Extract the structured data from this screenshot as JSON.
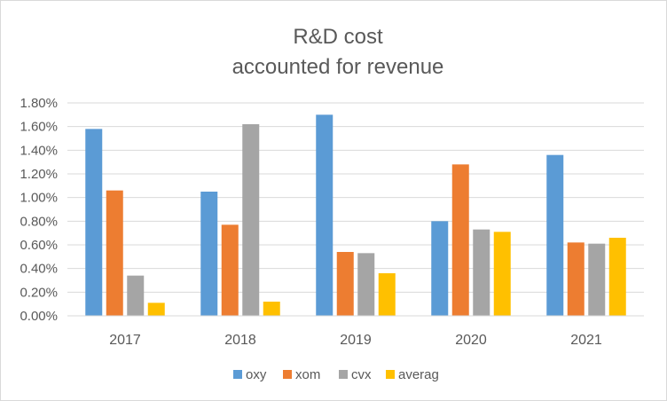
{
  "chart_data": {
    "type": "bar",
    "title_lines": [
      "R&D cost",
      "accounted for revenue"
    ],
    "categories": [
      "2017",
      "2018",
      "2019",
      "2020",
      "2021"
    ],
    "series": [
      {
        "name": "oxy",
        "color": "#5b9bd5",
        "values": [
          1.58,
          1.05,
          1.7,
          0.8,
          1.36
        ]
      },
      {
        "name": "xom",
        "color": "#ed7d31",
        "values": [
          1.06,
          0.77,
          0.54,
          1.28,
          0.62
        ]
      },
      {
        "name": "cvx",
        "color": "#a5a5a5",
        "values": [
          0.34,
          1.62,
          0.53,
          0.73,
          0.61
        ]
      },
      {
        "name": "averag",
        "color": "#ffc000",
        "values": [
          0.11,
          0.12,
          0.36,
          0.71,
          0.66
        ]
      }
    ],
    "ylim": [
      0,
      1.8
    ],
    "yticks": [
      "0.00%",
      "0.20%",
      "0.40%",
      "0.60%",
      "0.80%",
      "1.00%",
      "1.20%",
      "1.40%",
      "1.60%",
      "1.80%"
    ],
    "ytick_values": [
      0,
      0.2,
      0.4,
      0.6,
      0.8,
      1.0,
      1.2,
      1.4,
      1.6,
      1.8
    ],
    "grid": true,
    "legend": "bottom",
    "grid_color": "#d9d9d9"
  }
}
